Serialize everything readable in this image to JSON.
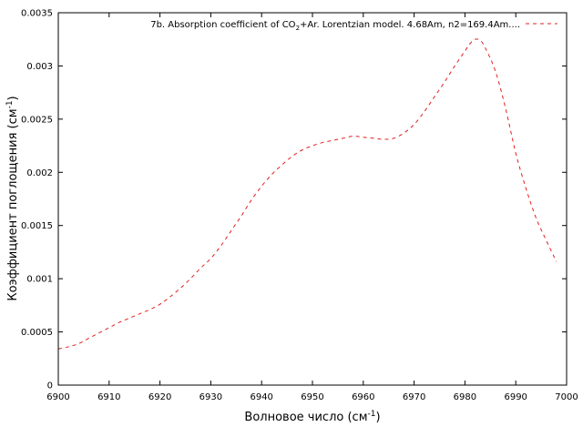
{
  "chart_data": {
    "type": "line",
    "title": "",
    "xlabel": {
      "main": "Волновое число (см",
      "sup": "-1",
      "close": ")"
    },
    "ylabel": {
      "main": "Коэффициент поглощения (см",
      "sup": "-1",
      "close": ")"
    },
    "xlim": [
      6900,
      7000
    ],
    "ylim": [
      0,
      0.0035
    ],
    "x_ticks": [
      6900,
      6910,
      6920,
      6930,
      6940,
      6950,
      6960,
      6970,
      6980,
      6990,
      7000
    ],
    "y_ticks": [
      0,
      0.0005,
      0.001,
      0.0015,
      0.002,
      0.0025,
      0.003,
      0.0035
    ],
    "x_tick_labels": [
      "6900",
      "6910",
      "6920",
      "6930",
      "6940",
      "6950",
      "6960",
      "6970",
      "6980",
      "6990",
      "7000"
    ],
    "y_tick_labels": [
      "0",
      "0.0005",
      "0.001",
      "0.0015",
      "0.002",
      "0.0025",
      "0.003",
      "0.0035"
    ],
    "grid": false,
    "legend_position": "top-right",
    "legend_label": {
      "before": "7b. Absorption coefficient of CO",
      "sub": "2",
      "after": "+Ar. Lorentzian model. 4.68Am, n2=169.4Am...."
    },
    "series": [
      {
        "name": "7b. Absorption coefficient of CO2+Ar. Lorentzian model. 4.68Am, n2=169.4Am....",
        "color": "#e02020",
        "style": "dashed",
        "x": [
          6900,
          6902,
          6904,
          6906,
          6908,
          6910,
          6912,
          6914,
          6916,
          6918,
          6920,
          6922,
          6924,
          6926,
          6928,
          6930,
          6932,
          6934,
          6936,
          6938,
          6940,
          6942,
          6944,
          6946,
          6948,
          6950,
          6952,
          6954,
          6956,
          6958,
          6960,
          6962,
          6964,
          6966,
          6968,
          6970,
          6972,
          6974,
          6976,
          6978,
          6980,
          6981,
          6982,
          6983,
          6984,
          6986,
          6988,
          6990,
          6992,
          6994,
          6996,
          6998
        ],
        "y": [
          0.00034,
          0.00036,
          0.00039,
          0.00044,
          0.00049,
          0.00054,
          0.00059,
          0.00063,
          0.00067,
          0.00071,
          0.00076,
          0.00083,
          0.00091,
          0.001,
          0.0011,
          0.00119,
          0.00131,
          0.00145,
          0.00159,
          0.00174,
          0.00187,
          0.00198,
          0.00207,
          0.00215,
          0.00221,
          0.00225,
          0.00228,
          0.0023,
          0.00232,
          0.00234,
          0.00233,
          0.00232,
          0.00231,
          0.00232,
          0.00237,
          0.00245,
          0.00257,
          0.00271,
          0.00285,
          0.003,
          0.00314,
          0.00321,
          0.00325,
          0.00324,
          0.00317,
          0.00295,
          0.0026,
          0.00218,
          0.00185,
          0.00157,
          0.00136,
          0.00116
        ]
      }
    ]
  }
}
